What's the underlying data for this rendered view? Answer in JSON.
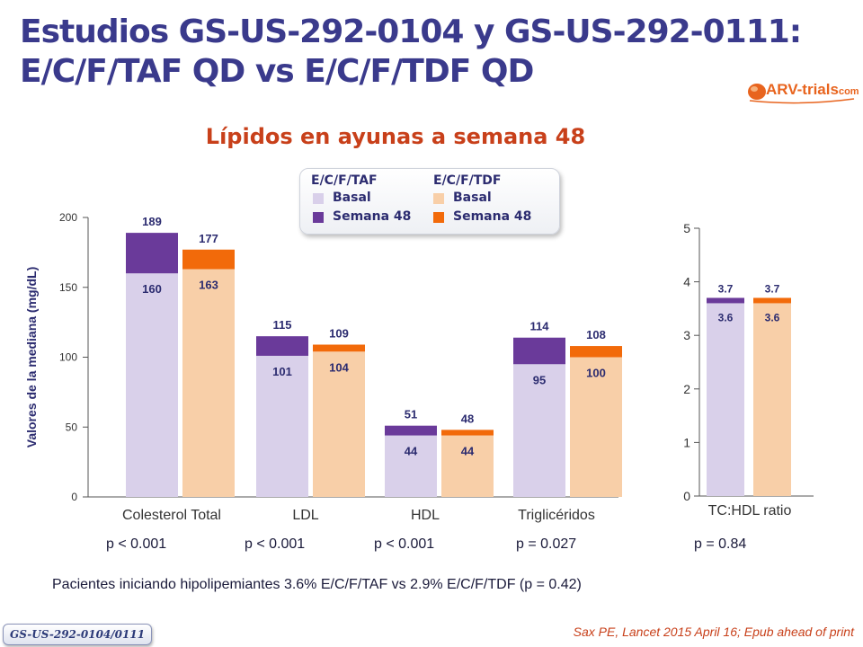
{
  "title": {
    "line1": "Estudios GS-US-292-0104 y GS-US-292-0111:",
    "line2": "E/C/F/TAF QD vs E/C/F/TDF QD"
  },
  "logo": {
    "text": "ARV-trials",
    "suffix": "com"
  },
  "colors": {
    "taf_basal": "#d9d0ea",
    "taf_week48": "#6a3a9a",
    "tdf_basal": "#f8cfa8",
    "tdf_week48": "#f26a0a"
  },
  "legend": {
    "taf_header": "E/C/F/TAF",
    "tdf_header": "E/C/F/TDF",
    "taf_basal": "Basal",
    "taf_week48": "Semana 48",
    "tdf_basal": "Basal",
    "tdf_week48": "Semana 48"
  },
  "chart_data": [
    {
      "type": "bar",
      "title": "Lípidos en ayunas a semana 48",
      "ylabel": "Valores de la mediana (mg/dL)",
      "ylim": [
        0,
        200
      ],
      "yticks": [
        "0",
        "50",
        "100",
        "150",
        "200"
      ],
      "categories": [
        "Colesterol Total",
        "LDL",
        "HDL",
        "Triglicéridos"
      ],
      "series": [
        {
          "name": "E/C/F/TAF Basal",
          "values": [
            160,
            101,
            44,
            95
          ]
        },
        {
          "name": "E/C/F/TAF Semana 48",
          "values": [
            189,
            115,
            51,
            114
          ]
        },
        {
          "name": "E/C/F/TDF Basal",
          "values": [
            163,
            104,
            44,
            100
          ]
        },
        {
          "name": "E/C/F/TDF Semana 48",
          "values": [
            177,
            109,
            48,
            108
          ]
        }
      ],
      "p_values": [
        "p < 0.001",
        "p < 0.001",
        "p < 0.001",
        "p = 0.027"
      ]
    },
    {
      "type": "bar",
      "xlabel": "TC:HDL ratio",
      "ylim": [
        0,
        5
      ],
      "yticks": [
        "0",
        "1",
        "2",
        "3",
        "4",
        "5"
      ],
      "categories": [
        "TC:HDL ratio"
      ],
      "series": [
        {
          "name": "E/C/F/TAF Basal",
          "values": [
            3.6
          ]
        },
        {
          "name": "E/C/F/TAF Semana 48",
          "values": [
            3.7
          ]
        },
        {
          "name": "E/C/F/TDF Basal",
          "values": [
            3.6
          ]
        },
        {
          "name": "E/C/F/TDF Semana 48",
          "values": [
            3.7
          ]
        }
      ],
      "p_values": [
        "p = 0.84"
      ]
    }
  ],
  "note": "Pacientes iniciando hipolipemiantes  3.6% E/C/F/TAF vs 2.9% E/C/F/TDF (p = 0.42)",
  "badge": "GS-US-292-0104/0111",
  "reference": "Sax PE, Lancet 2015 April 16; Epub ahead of print"
}
